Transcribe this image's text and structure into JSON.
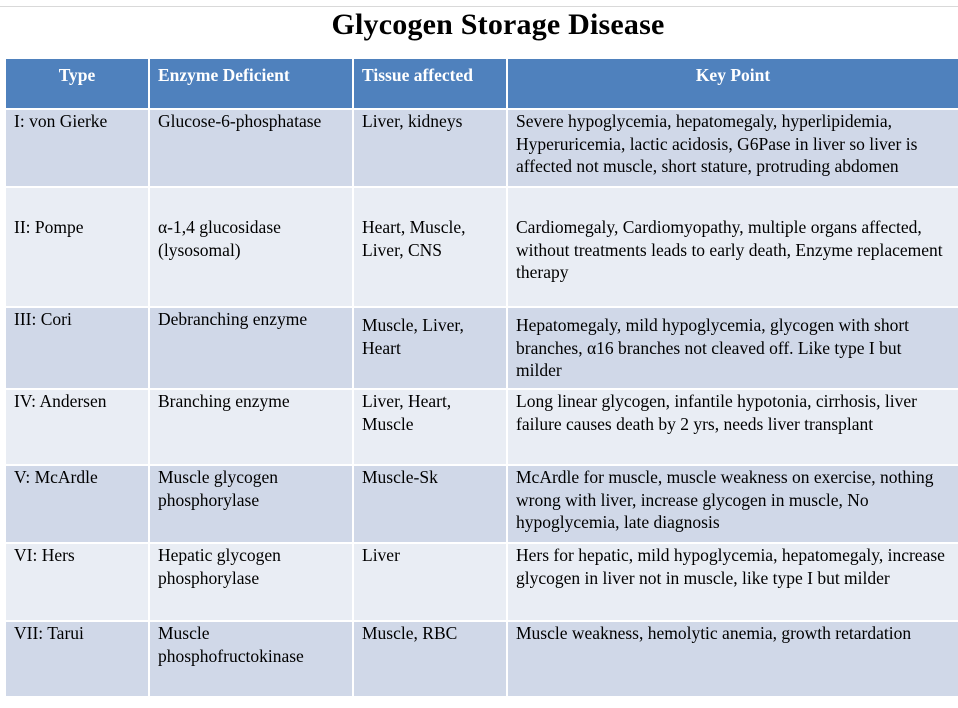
{
  "title": "Glycogen Storage Disease",
  "columns": {
    "type": "Type",
    "enzyme": "Enzyme Deficient",
    "tissue": "Tissue affected",
    "key_point": "Key Point"
  },
  "rows": [
    {
      "type": "I: von Gierke",
      "enzyme": "Glucose-6-phosphatase",
      "tissue": "Liver, kidneys",
      "key_point": "Severe hypoglycemia, hepatomegaly, hyperlipidemia, Hyperuricemia, lactic acidosis, G6Pase in liver so liver is affected not muscle, short stature, protruding abdomen"
    },
    {
      "type": "II: Pompe",
      "enzyme": "α-1,4 glucosidase (lysosomal)",
      "tissue": "Heart, Muscle, Liver, CNS",
      "key_point": "Cardiomegaly, Cardiomyopathy, multiple organs affected, without treatments leads to early death, Enzyme replacement therapy"
    },
    {
      "type": "III: Cori",
      "enzyme": "Debranching enzyme",
      "tissue": "Muscle, Liver, Heart",
      "key_point": "Hepatomegaly, mild hypoglycemia, glycogen with short branches, α16 branches not cleaved off. Like type I but milder"
    },
    {
      "type": "IV: Andersen",
      "enzyme": "Branching enzyme",
      "tissue": "Liver, Heart, Muscle",
      "key_point": "Long linear glycogen, infantile hypotonia, cirrhosis, liver failure causes death by 2 yrs, needs liver transplant"
    },
    {
      "type": "V: McArdle",
      "enzyme": "Muscle glycogen phosphorylase",
      "tissue": "Muscle-Sk",
      "key_point": "McArdle for muscle, muscle weakness on exercise, nothing wrong with liver, increase glycogen in muscle, No hypoglycemia, late diagnosis"
    },
    {
      "type": "VI: Hers",
      "enzyme": "Hepatic glycogen phosphorylase",
      "tissue": "Liver",
      "key_point": "Hers for hepatic, mild hypoglycemia, hepatomegaly, increase glycogen in liver not in muscle, like type I but milder"
    },
    {
      "type": "VII: Tarui",
      "enzyme": "Muscle phosphofructokinase",
      "tissue": "Muscle, RBC",
      "key_point": "Muscle weakness, hemolytic anemia, growth retardation"
    }
  ],
  "colors": {
    "header_bg": "#4f81bd",
    "row_odd_bg": "#d0d8e8",
    "row_even_bg": "#e9edf4"
  }
}
